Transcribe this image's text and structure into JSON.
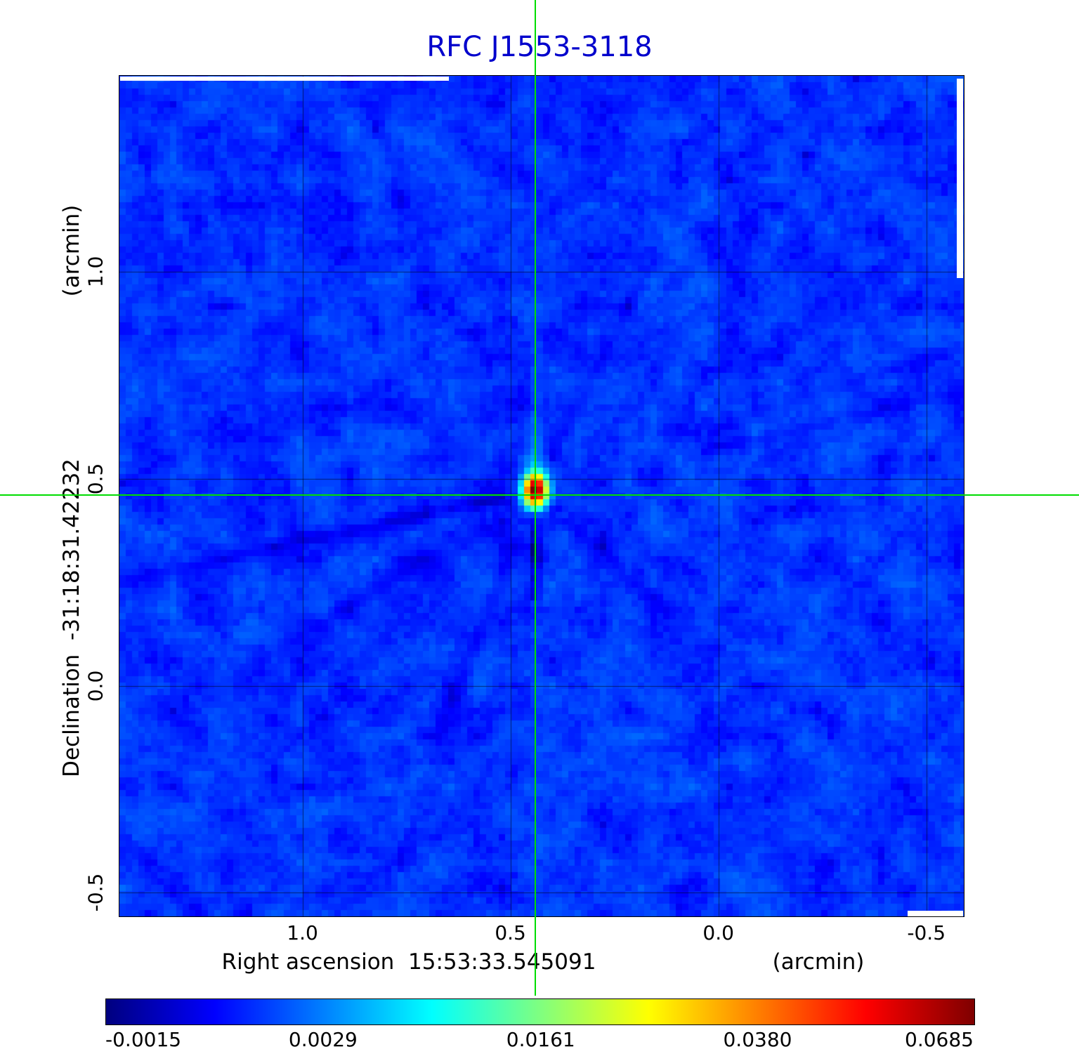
{
  "title": {
    "text": "RFC J1553-3118",
    "color": "#0000cc"
  },
  "axes": {
    "y_unit": "(arcmin)",
    "y_label": "Declination  -31:18:31.42232",
    "x_label": "Right ascension  15:53:33.545091",
    "x_unit": "(arcmin)",
    "x_ticks": [
      "1.0",
      "0.5",
      "0.0",
      "-0.5"
    ],
    "y_ticks": [
      "1.0",
      "0.5",
      "0.0",
      "-0.5"
    ]
  },
  "chart_data": {
    "type": "heatmap",
    "title": "RFC J1553-3118",
    "xlabel": "Right ascension 15:53:33.545091 (arcmin)",
    "ylabel": "Declination -31:18:31.42232 (arcmin)",
    "x_axis_arcmin": {
      "range": [
        1.44,
        -0.59
      ],
      "ticks": [
        1.0,
        0.5,
        0.0,
        -0.5
      ]
    },
    "y_axis_arcmin": {
      "range": [
        1.473,
        -0.557
      ],
      "ticks": [
        1.0,
        0.5,
        0.0,
        -0.5
      ]
    },
    "grid": true,
    "intensity_scale": {
      "vmin": -0.0015,
      "vmax": 0.0685,
      "scale": "sqrt",
      "colormap": "jet"
    },
    "colorbar_ticks": [
      -0.0015,
      0.0029,
      0.0161,
      0.038,
      0.0685
    ],
    "colorbar_tick_labels": [
      "-0.0015",
      "0.0029",
      "0.0161",
      "0.0380",
      "0.0685"
    ],
    "colormap_stops": [
      {
        "pos": 0.0,
        "color": "#00007f"
      },
      {
        "pos": 0.125,
        "color": "#0000ff"
      },
      {
        "pos": 0.375,
        "color": "#00ffff"
      },
      {
        "pos": 0.625,
        "color": "#ffff00"
      },
      {
        "pos": 0.875,
        "color": "#ff0000"
      },
      {
        "pos": 1.0,
        "color": "#7f0000"
      }
    ],
    "source": {
      "name": "RFC J1553-3118",
      "ra_arcmin": 0.44,
      "dec_arcmin": 0.472,
      "peak_value": 0.0685
    },
    "crosshair": {
      "ra_arcmin": 0.44,
      "dec_arcmin": 0.46,
      "color": "#00dd00"
    },
    "background_level": 0.0006,
    "noise_rms": 0.001,
    "artifacts": "radial dirty-beam streaks converging on the source; dark negative sidelobe below source; light vertical plume above source"
  }
}
